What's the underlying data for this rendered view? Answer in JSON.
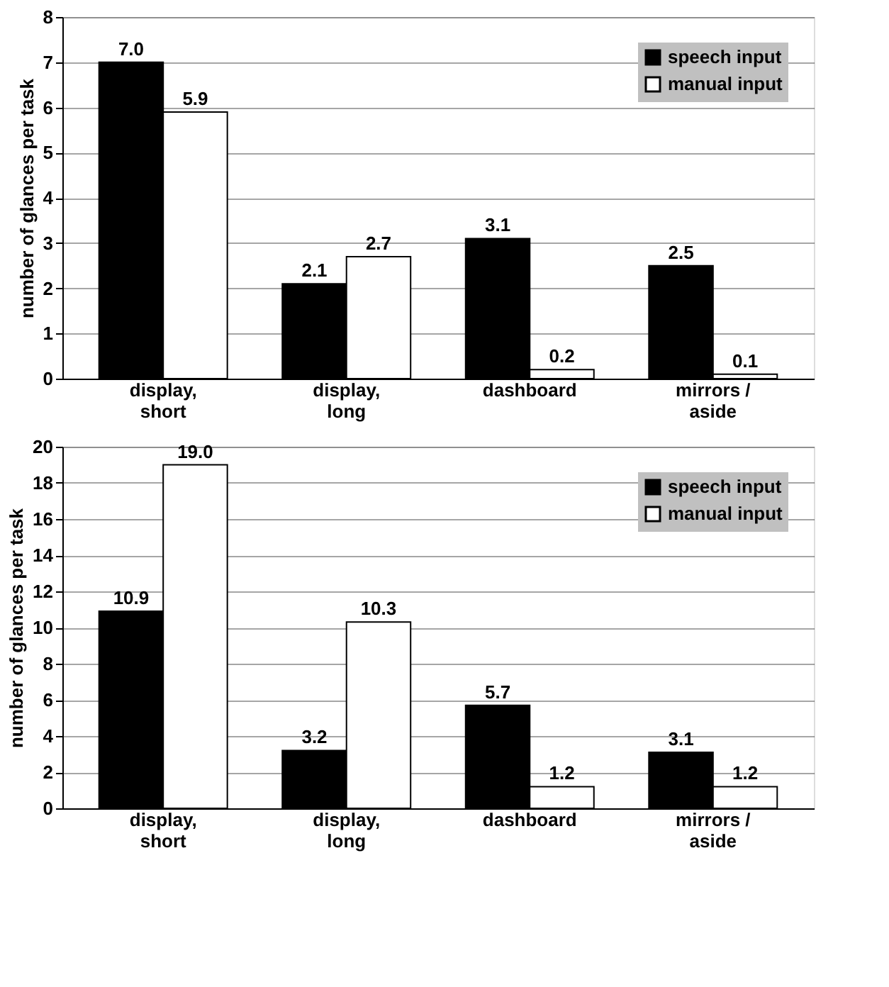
{
  "chart_data": [
    {
      "type": "bar",
      "ylabel": "number of glances per task",
      "categories": [
        "display,\nshort",
        "display,\nlong",
        "dashboard",
        "mirrors /\naside"
      ],
      "series": [
        {
          "name": "speech input",
          "color": "#000000",
          "values": [
            7.0,
            2.1,
            3.1,
            2.5
          ],
          "value_labels": [
            "7.0",
            "2.1",
            "3.1",
            "2.5"
          ]
        },
        {
          "name": "manual input",
          "color": "#ffffff",
          "values": [
            5.9,
            2.7,
            0.2,
            0.1
          ],
          "value_labels": [
            "5.9",
            "2.7",
            "0.2",
            "0.1"
          ]
        }
      ],
      "ylim": [
        0,
        8
      ],
      "yticks": [
        0,
        1,
        2,
        3,
        4,
        5,
        6,
        7,
        8
      ],
      "grid": "y",
      "legend": "top right"
    },
    {
      "type": "bar",
      "ylabel": "number of glances per task",
      "categories": [
        "display,\nshort",
        "display,\nlong",
        "dashboard",
        "mirrors /\naside"
      ],
      "series": [
        {
          "name": "speech input",
          "color": "#000000",
          "values": [
            10.9,
            3.2,
            5.7,
            3.1
          ],
          "value_labels": [
            "10.9",
            "3.2",
            "5.7",
            "3.1"
          ]
        },
        {
          "name": "manual input",
          "color": "#ffffff",
          "values": [
            19.0,
            10.3,
            1.2,
            1.2
          ],
          "value_labels": [
            "19.0",
            "10.3",
            "1.2",
            "1.2"
          ]
        }
      ],
      "ylim": [
        0,
        20
      ],
      "yticks": [
        0,
        2,
        4,
        6,
        8,
        10,
        12,
        14,
        16,
        18,
        20
      ],
      "grid": "y",
      "legend": "top right"
    }
  ]
}
